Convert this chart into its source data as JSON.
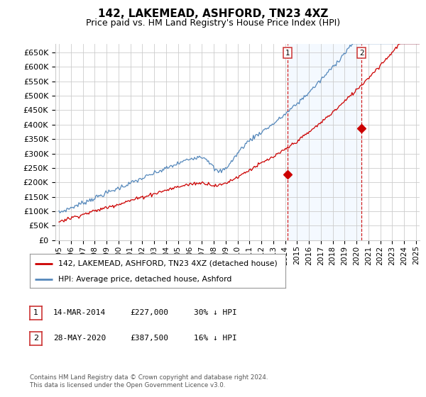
{
  "title": "142, LAKEMEAD, ASHFORD, TN23 4XZ",
  "subtitle": "Price paid vs. HM Land Registry's House Price Index (HPI)",
  "ylabel_ticks": [
    "£0",
    "£50K",
    "£100K",
    "£150K",
    "£200K",
    "£250K",
    "£300K",
    "£350K",
    "£400K",
    "£450K",
    "£500K",
    "£550K",
    "£600K",
    "£650K"
  ],
  "ytick_values": [
    0,
    50000,
    100000,
    150000,
    200000,
    250000,
    300000,
    350000,
    400000,
    450000,
    500000,
    550000,
    600000,
    650000
  ],
  "ylim": [
    0,
    680000
  ],
  "xlim_start": 1994.7,
  "xlim_end": 2025.3,
  "sale1_date": 2014.2,
  "sale1_price": 227000,
  "sale2_date": 2020.42,
  "sale2_price": 387500,
  "legend_line1": "142, LAKEMEAD, ASHFORD, TN23 4XZ (detached house)",
  "legend_line2": "HPI: Average price, detached house, Ashford",
  "table_row1": [
    "1",
    "14-MAR-2014",
    "£227,000",
    "30% ↓ HPI"
  ],
  "table_row2": [
    "2",
    "28-MAY-2020",
    "£387,500",
    "16% ↓ HPI"
  ],
  "footer": "Contains HM Land Registry data © Crown copyright and database right 2024.\nThis data is licensed under the Open Government Licence v3.0.",
  "red_color": "#cc0000",
  "blue_color": "#5588bb",
  "shading_color": "#ddeeff",
  "grid_color": "#cccccc",
  "title_fontsize": 11,
  "subtitle_fontsize": 9,
  "tick_fontsize": 8
}
